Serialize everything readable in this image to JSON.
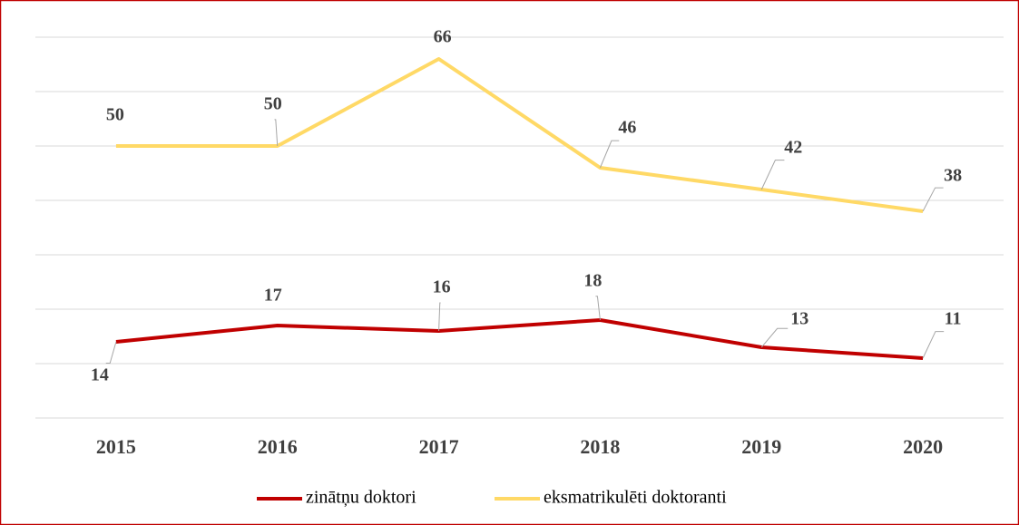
{
  "chart_data": {
    "type": "line",
    "x": [
      "2015",
      "2016",
      "2017",
      "2018",
      "2019",
      "2020"
    ],
    "series": [
      {
        "name": "zinātņu doktori",
        "color": "#c00000",
        "values": [
          14,
          17,
          16,
          18,
          13,
          11
        ]
      },
      {
        "name": "eksmatrikulēti doktoranti",
        "color": "#ffd966",
        "values": [
          50,
          50,
          66,
          46,
          42,
          38
        ]
      }
    ],
    "ylim": [
      0,
      70
    ],
    "yticks": [
      0,
      10,
      20,
      30,
      40,
      50,
      60,
      70
    ],
    "grid": true,
    "legend": "bottom"
  }
}
